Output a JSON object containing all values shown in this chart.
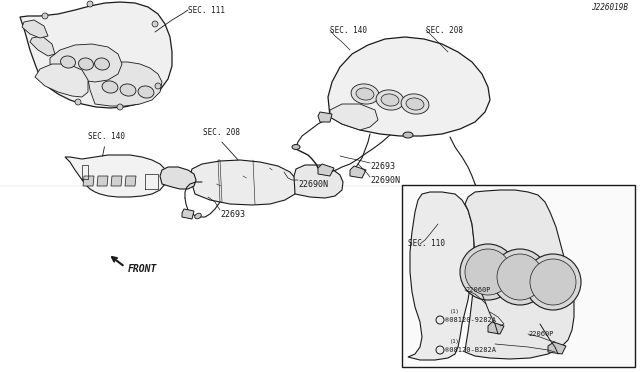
{
  "background_color": "#ffffff",
  "line_color": "#1a1a1a",
  "text_color": "#1a1a1a",
  "fig_width": 6.4,
  "fig_height": 3.72,
  "dpi": 100,
  "labels": {
    "front": "FRONT",
    "sec140_top": "SEC. 140",
    "sec208_top": "SEC. 208",
    "sec110": "SEC. 110",
    "sec140_bot": "SEC. 140",
    "sec208_bot": "SEC. 208",
    "sec111": "SEC. 111",
    "22693_top": "22693",
    "22690N_top": "22690N",
    "22690N_bot": "22690N",
    "22693_bot": "22693",
    "08120_B282A": "®08120-B282A",
    "08120_B282A_sub": "(1)",
    "22060P_1": "22060P",
    "08120_9282A": "®08120-9282A",
    "08120_9282A_sub": "(1)",
    "22060P_2": "22060P",
    "diagram_code": "J226019B"
  },
  "font_size_label": 6,
  "font_size_section": 5.5,
  "font_size_code": 5.5,
  "font_size_inset": 5.0
}
